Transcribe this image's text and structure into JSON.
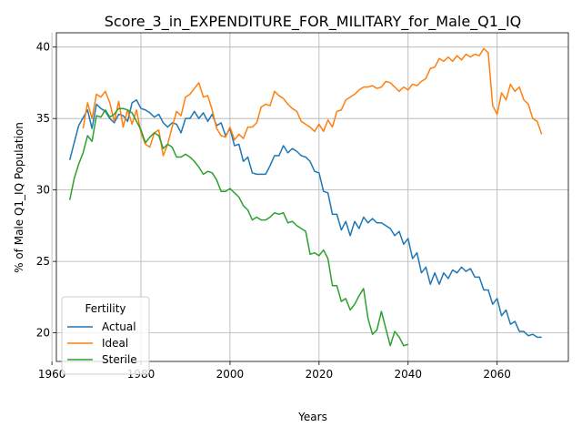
{
  "chart_data": {
    "type": "line",
    "title": "Score_3_in_EXPENDITURE_FOR_MILITARY_for_Male_Q1_IQ",
    "xlabel": "Years",
    "ylabel": "% of Male Q1_IQ Population",
    "xlim": [
      1961,
      2076
    ],
    "ylim": [
      18,
      41
    ],
    "xticks": [
      1960,
      1980,
      2000,
      2020,
      2040,
      2060
    ],
    "yticks": [
      20,
      25,
      30,
      35,
      40
    ],
    "grid": true,
    "legend": {
      "title": "Fertility",
      "position": "lower-left"
    },
    "series": [
      {
        "name": "Actual",
        "color": "#1f77b4",
        "x": [
          1964,
          1966,
          1968,
          1969,
          1970,
          1971,
          1972,
          1973,
          1974,
          1975,
          1976,
          1977,
          1978,
          1979,
          1980,
          1981,
          1982,
          1983,
          1984,
          1985,
          1986,
          1987,
          1988,
          1989,
          1990,
          1991,
          1992,
          1993,
          1994,
          1995,
          1996,
          1997,
          1998,
          1999,
          2000,
          2001,
          2002,
          2003,
          2004,
          2005,
          2006,
          2007,
          2008,
          2009,
          2010,
          2011,
          2012,
          2013,
          2014,
          2015,
          2016,
          2017,
          2018,
          2019,
          2020,
          2021,
          2022,
          2023,
          2024,
          2025,
          2026,
          2027,
          2028,
          2029,
          2030,
          2031,
          2032,
          2033,
          2034,
          2035,
          2036,
          2037,
          2038,
          2039,
          2040,
          2041,
          2042,
          2043,
          2044,
          2045,
          2046,
          2047,
          2048,
          2049,
          2050,
          2051,
          2052,
          2053,
          2054,
          2055,
          2056,
          2057,
          2058,
          2059,
          2060,
          2061,
          2062,
          2063,
          2064,
          2065,
          2066,
          2067,
          2068,
          2069,
          2070
        ],
        "values": [
          32.1,
          34.5,
          35.6,
          34.3,
          36.0,
          35.7,
          35.5,
          35.0,
          34.7,
          35.3,
          35.2,
          34.8,
          36.1,
          36.3,
          35.7,
          35.6,
          35.4,
          35.1,
          35.3,
          34.7,
          34.4,
          34.7,
          34.6,
          34.0,
          35.0,
          35.0,
          35.5,
          35.0,
          35.4,
          34.8,
          35.3,
          34.5,
          34.7,
          33.8,
          34.3,
          33.1,
          33.2,
          32.0,
          32.3,
          31.2,
          31.1,
          31.1,
          31.1,
          31.7,
          32.4,
          32.4,
          33.1,
          32.6,
          32.9,
          32.7,
          32.4,
          32.3,
          32.0,
          31.3,
          31.2,
          29.9,
          29.8,
          28.3,
          28.3,
          27.2,
          27.8,
          26.8,
          27.8,
          27.3,
          28.1,
          27.7,
          28.0,
          27.7,
          27.7,
          27.5,
          27.3,
          26.8,
          27.1,
          26.2,
          26.6,
          25.2,
          25.6,
          24.2,
          24.6,
          23.4,
          24.2,
          23.4,
          24.2,
          23.8,
          24.4,
          24.2,
          24.6,
          24.3,
          24.5,
          23.9,
          23.9,
          23.0,
          23.0,
          22.0,
          22.4,
          21.2,
          21.6,
          20.6,
          20.8,
          20.1,
          20.1,
          19.8,
          19.9,
          19.7,
          19.7
        ],
        "x_start": 1964
      },
      {
        "name": "Ideal",
        "color": "#ff7f0e",
        "x": [
          1967,
          1968,
          1969,
          1970,
          1971,
          1972,
          1973,
          1974,
          1975,
          1976,
          1977,
          1978,
          1979,
          1980,
          1981,
          1982,
          1983,
          1984,
          1985,
          1986,
          1987,
          1988,
          1989,
          1990,
          1991,
          1992,
          1993,
          1994,
          1995,
          1996,
          1997,
          1998,
          1999,
          2000,
          2001,
          2002,
          2003,
          2004,
          2005,
          2006,
          2007,
          2008,
          2009,
          2010,
          2011,
          2012,
          2013,
          2014,
          2015,
          2016,
          2017,
          2018,
          2019,
          2020,
          2021,
          2022,
          2023,
          2024,
          2025,
          2026,
          2027,
          2028,
          2029,
          2030,
          2031,
          2032,
          2033,
          2034,
          2035,
          2036,
          2037,
          2038,
          2039,
          2040,
          2041,
          2042,
          2043,
          2044,
          2045,
          2046,
          2047,
          2048,
          2049,
          2050,
          2051,
          2052,
          2053,
          2054,
          2055,
          2056,
          2057,
          2058,
          2059,
          2060,
          2061,
          2062,
          2063,
          2064,
          2065,
          2066,
          2067,
          2068,
          2069,
          2070
        ],
        "values": [
          34.3,
          36.1,
          35.0,
          36.7,
          36.5,
          36.9,
          36.1,
          34.8,
          36.2,
          34.4,
          35.6,
          34.6,
          35.6,
          34.0,
          33.2,
          33.0,
          34.0,
          34.2,
          32.4,
          33.2,
          34.4,
          35.5,
          35.2,
          36.5,
          36.7,
          37.1,
          37.5,
          36.5,
          36.6,
          35.6,
          34.3,
          33.8,
          33.7,
          34.4,
          33.5,
          33.9,
          33.6,
          34.4,
          34.4,
          34.7,
          35.8,
          36.0,
          35.9,
          36.9,
          36.6,
          36.4,
          36.0,
          35.7,
          35.5,
          34.8,
          34.6,
          34.4,
          34.1,
          34.6,
          34.1,
          34.9,
          34.4,
          35.5,
          35.6,
          36.3,
          36.5,
          36.7,
          37.0,
          37.2,
          37.2,
          37.3,
          37.1,
          37.2,
          37.6,
          37.5,
          37.2,
          36.9,
          37.2,
          37.0,
          37.4,
          37.3,
          37.6,
          37.8,
          38.5,
          38.6,
          39.2,
          39.0,
          39.3,
          39.0,
          39.4,
          39.1,
          39.5,
          39.3,
          39.5,
          39.4,
          39.9,
          39.6,
          35.9,
          35.3,
          36.8,
          36.3,
          37.4,
          36.9,
          37.2,
          36.3,
          36.0,
          35.0,
          34.8,
          33.9
        ]
      },
      {
        "name": "Sterile",
        "color": "#2ca02c",
        "x": [
          1964,
          1965,
          1966,
          1967,
          1968,
          1969,
          1970,
          1971,
          1972,
          1973,
          1974,
          1975,
          1976,
          1977,
          1978,
          1979,
          1980,
          1981,
          1982,
          1983,
          1984,
          1985,
          1986,
          1987,
          1988,
          1989,
          1990,
          1991,
          1992,
          1993,
          1994,
          1995,
          1996,
          1997,
          1998,
          1999,
          2000,
          2001,
          2002,
          2003,
          2004,
          2005,
          2006,
          2007,
          2008,
          2009,
          2010,
          2011,
          2012,
          2013,
          2014,
          2015,
          2016,
          2017,
          2018,
          2019,
          2020,
          2021,
          2022,
          2023,
          2024,
          2025,
          2026,
          2027,
          2028,
          2029,
          2030,
          2031,
          2032,
          2033,
          2034,
          2035,
          2036,
          2037,
          2038,
          2039,
          2040,
          2041
        ],
        "values": [
          29.3,
          30.8,
          31.8,
          32.6,
          33.8,
          33.4,
          35.2,
          35.1,
          35.6,
          35.1,
          35.3,
          35.7,
          35.7,
          35.6,
          35.4,
          34.8,
          34.2,
          33.3,
          33.7,
          34.0,
          33.8,
          32.9,
          33.2,
          33.0,
          32.3,
          32.3,
          32.5,
          32.3,
          32.0,
          31.6,
          31.1,
          31.3,
          31.2,
          30.7,
          29.9,
          29.9,
          30.1,
          29.8,
          29.5,
          28.9,
          28.6,
          27.9,
          28.1,
          27.9,
          27.9,
          28.1,
          28.4,
          28.3,
          28.4,
          27.7,
          27.8,
          27.5,
          27.3,
          27.1,
          25.5,
          25.6,
          25.4,
          25.8,
          25.2,
          23.3,
          23.3,
          22.2,
          22.4,
          21.6,
          22.0,
          22.6,
          23.1,
          21.0,
          19.9,
          20.2,
          21.5,
          20.3,
          19.1,
          20.1,
          19.7,
          19.1,
          19.2,
          null
        ]
      }
    ]
  }
}
